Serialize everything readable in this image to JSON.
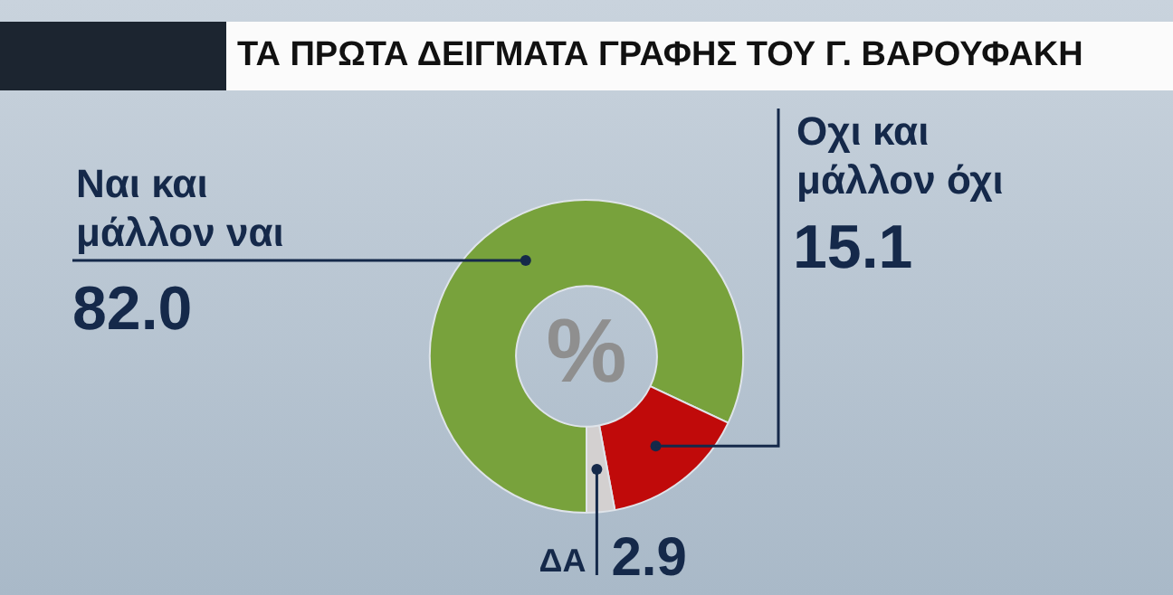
{
  "chart_data": {
    "type": "donut",
    "title": "ΤΑ ΠΡΩΤΑ ΔΕΙΓΜΑΤΑ ΓΡΑΦΗΣ ΤΟΥ Γ. ΒΑΡΟΥΦΑΚΗ",
    "categories": [
      "Ναι και μάλλον ναι",
      "Οχι και μάλλον όχι",
      "ΔΑ"
    ],
    "values": [
      82.0,
      15.1,
      2.9
    ],
    "value_labels": [
      "82.0",
      "15.1",
      "2.9"
    ],
    "colors": [
      "#78a23c",
      "#c00a0a",
      "#d3d0d0"
    ],
    "annotations": [
      "%"
    ],
    "legend": false
  }
}
